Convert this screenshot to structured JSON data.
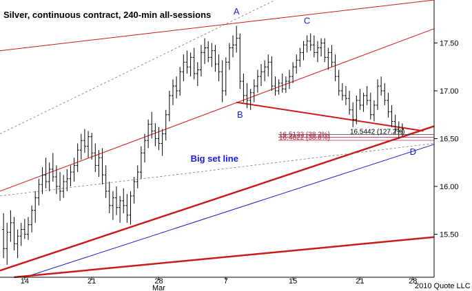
{
  "chart_data": {
    "type": "ohlc",
    "title": "Silver, continuous contract, 240-min all-sessions",
    "copyright": "2010 Quote LLC",
    "ylim": [
      15.05,
      17.95
    ],
    "y_ticks": [
      {
        "value": 15.5,
        "label": "15.50"
      },
      {
        "value": 16.0,
        "label": "16.00"
      },
      {
        "value": 16.5,
        "label": "16.50"
      },
      {
        "value": 17.0,
        "label": "17.00"
      },
      {
        "value": 17.5,
        "label": "17.50"
      }
    ],
    "x_ticks": [
      {
        "bar": 6,
        "label": "14"
      },
      {
        "bar": 25,
        "label": "21"
      },
      {
        "bar": 44,
        "label": "28"
      },
      {
        "bar": 63,
        "label": "7"
      },
      {
        "bar": 82,
        "label": "15"
      },
      {
        "bar": 101,
        "label": "21"
      },
      {
        "bar": 116,
        "label": "28"
      }
    ],
    "month_label": {
      "bar": 44,
      "label": "Mar"
    },
    "x_range": [
      -1,
      122
    ],
    "bars": [
      [
        15.55,
        15.72,
        15.25,
        15.35
      ],
      [
        15.35,
        15.62,
        15.18,
        15.52
      ],
      [
        15.52,
        15.75,
        15.42,
        15.62
      ],
      [
        15.62,
        15.68,
        15.33,
        15.4
      ],
      [
        15.4,
        15.55,
        15.25,
        15.48
      ],
      [
        15.48,
        15.62,
        15.38,
        15.55
      ],
      [
        15.55,
        15.66,
        15.45,
        15.5
      ],
      [
        15.5,
        15.68,
        15.44,
        15.6
      ],
      [
        15.6,
        15.8,
        15.52,
        15.75
      ],
      [
        15.75,
        15.95,
        15.62,
        15.88
      ],
      [
        15.88,
        16.08,
        15.8,
        16.02
      ],
      [
        16.02,
        16.2,
        15.92,
        16.12
      ],
      [
        16.12,
        16.3,
        15.98,
        16.05
      ],
      [
        16.05,
        16.25,
        15.95,
        16.18
      ],
      [
        16.18,
        16.35,
        16.05,
        16.1
      ],
      [
        16.1,
        16.22,
        15.92,
        16.0
      ],
      [
        16.0,
        16.15,
        15.85,
        15.95
      ],
      [
        15.95,
        16.12,
        15.88,
        16.05
      ],
      [
        16.05,
        16.18,
        15.95,
        16.08
      ],
      [
        16.08,
        16.22,
        16.0,
        16.15
      ],
      [
        16.15,
        16.3,
        16.05,
        16.22
      ],
      [
        16.22,
        16.45,
        16.15,
        16.38
      ],
      [
        16.38,
        16.55,
        16.28,
        16.48
      ],
      [
        16.48,
        16.6,
        16.35,
        16.42
      ],
      [
        16.42,
        16.58,
        16.3,
        16.52
      ],
      [
        16.52,
        16.56,
        16.28,
        16.35
      ],
      [
        16.35,
        16.45,
        16.15,
        16.22
      ],
      [
        16.22,
        16.38,
        16.1,
        16.3
      ],
      [
        16.3,
        16.4,
        16.02,
        16.12
      ],
      [
        16.12,
        16.22,
        15.88,
        15.95
      ],
      [
        15.95,
        16.05,
        15.72,
        15.8
      ],
      [
        15.8,
        15.95,
        15.65,
        15.88
      ],
      [
        15.88,
        16.0,
        15.7,
        15.78
      ],
      [
        15.78,
        15.9,
        15.62,
        15.85
      ],
      [
        15.85,
        15.98,
        15.72,
        15.8
      ],
      [
        15.8,
        15.92,
        15.62,
        15.7
      ],
      [
        15.7,
        15.95,
        15.6,
        15.9
      ],
      [
        15.9,
        16.1,
        15.82,
        16.05
      ],
      [
        16.05,
        16.22,
        15.98,
        16.15
      ],
      [
        16.15,
        16.42,
        16.08,
        16.35
      ],
      [
        16.35,
        16.55,
        16.25,
        16.48
      ],
      [
        16.48,
        16.7,
        16.4,
        16.65
      ],
      [
        16.65,
        16.78,
        16.5,
        16.58
      ],
      [
        16.58,
        16.66,
        16.42,
        16.5
      ],
      [
        16.5,
        16.62,
        16.38,
        16.45
      ],
      [
        16.45,
        16.6,
        16.32,
        16.55
      ],
      [
        16.55,
        16.8,
        16.48,
        16.75
      ],
      [
        16.75,
        17.0,
        16.68,
        16.95
      ],
      [
        16.95,
        17.12,
        16.85,
        17.05
      ],
      [
        17.05,
        17.15,
        16.92,
        17.0
      ],
      [
        17.0,
        17.25,
        16.95,
        17.2
      ],
      [
        17.2,
        17.38,
        17.1,
        17.3
      ],
      [
        17.3,
        17.42,
        17.18,
        17.25
      ],
      [
        17.25,
        17.4,
        17.15,
        17.35
      ],
      [
        17.35,
        17.45,
        17.12,
        17.18
      ],
      [
        17.18,
        17.3,
        17.05,
        17.22
      ],
      [
        17.22,
        17.48,
        17.15,
        17.4
      ],
      [
        17.4,
        17.55,
        17.28,
        17.45
      ],
      [
        17.45,
        17.52,
        17.3,
        17.35
      ],
      [
        17.35,
        17.5,
        17.25,
        17.42
      ],
      [
        17.42,
        17.48,
        17.2,
        17.28
      ],
      [
        17.28,
        17.38,
        17.1,
        17.2
      ],
      [
        17.2,
        17.32,
        16.88,
        17.0
      ],
      [
        17.0,
        17.35,
        16.95,
        17.3
      ],
      [
        17.3,
        17.5,
        17.22,
        17.45
      ],
      [
        17.45,
        17.58,
        17.35,
        17.48
      ],
      [
        17.48,
        17.68,
        17.4,
        17.55
      ],
      [
        17.55,
        17.6,
        17.02,
        17.1
      ],
      [
        17.1,
        17.18,
        16.88,
        16.95
      ],
      [
        16.95,
        17.08,
        16.82,
        16.9
      ],
      [
        16.9,
        17.02,
        16.8,
        16.98
      ],
      [
        16.98,
        17.12,
        16.88,
        17.05
      ],
      [
        17.05,
        17.22,
        16.98,
        17.15
      ],
      [
        17.15,
        17.28,
        17.05,
        17.2
      ],
      [
        17.2,
        17.32,
        17.1,
        17.25
      ],
      [
        17.25,
        17.38,
        17.15,
        17.3
      ],
      [
        17.3,
        17.36,
        17.0,
        17.05
      ],
      [
        17.05,
        17.15,
        16.95,
        17.0
      ],
      [
        17.0,
        17.12,
        16.96,
        17.08
      ],
      [
        17.08,
        17.18,
        16.98,
        17.02
      ],
      [
        17.02,
        17.15,
        16.98,
        17.1
      ],
      [
        17.1,
        17.22,
        17.02,
        17.15
      ],
      [
        17.15,
        17.3,
        17.08,
        17.25
      ],
      [
        17.25,
        17.38,
        17.18,
        17.32
      ],
      [
        17.32,
        17.45,
        17.25,
        17.4
      ],
      [
        17.4,
        17.52,
        17.32,
        17.48
      ],
      [
        17.48,
        17.58,
        17.4,
        17.52
      ],
      [
        17.52,
        17.6,
        17.42,
        17.48
      ],
      [
        17.48,
        17.58,
        17.35,
        17.4
      ],
      [
        17.4,
        17.52,
        17.3,
        17.45
      ],
      [
        17.45,
        17.55,
        17.36,
        17.5
      ],
      [
        17.5,
        17.55,
        17.3,
        17.35
      ],
      [
        17.35,
        17.45,
        17.22,
        17.4
      ],
      [
        17.4,
        17.48,
        17.25,
        17.3
      ],
      [
        17.3,
        17.38,
        17.1,
        17.15
      ],
      [
        17.15,
        17.22,
        16.95,
        17.0
      ],
      [
        17.0,
        17.08,
        16.9,
        16.95
      ],
      [
        16.95,
        17.05,
        16.85,
        16.92
      ],
      [
        16.92,
        17.0,
        16.75,
        16.8
      ],
      [
        16.8,
        16.88,
        16.62,
        16.7
      ],
      [
        16.7,
        16.95,
        16.65,
        16.9
      ],
      [
        16.9,
        17.02,
        16.8,
        16.85
      ],
      [
        16.85,
        16.98,
        16.78,
        16.95
      ],
      [
        16.95,
        17.05,
        16.85,
        16.9
      ],
      [
        16.9,
        16.98,
        16.7,
        16.75
      ],
      [
        16.75,
        16.9,
        16.68,
        16.85
      ],
      [
        16.85,
        17.12,
        16.8,
        17.05
      ],
      [
        17.05,
        17.15,
        16.95,
        17.0
      ],
      [
        17.0,
        17.08,
        16.85,
        16.9
      ],
      [
        16.9,
        16.98,
        16.72,
        16.78
      ],
      [
        16.78,
        16.85,
        16.62,
        16.68
      ],
      [
        16.68,
        16.75,
        16.55,
        16.6
      ],
      [
        16.6,
        16.68,
        16.5,
        16.58
      ],
      [
        16.58,
        16.66,
        16.53,
        16.6
      ]
    ],
    "annotations": [
      {
        "label": "A",
        "bar": 66,
        "price": 17.8
      },
      {
        "label": "B",
        "bar": 67,
        "price": 16.72
      },
      {
        "label": "C",
        "bar": 86,
        "price": 17.7
      },
      {
        "label": "D",
        "bar": 116,
        "price": 16.33
      },
      {
        "label": "Big set line",
        "bar": 53,
        "price": 16.26
      }
    ],
    "fib_levels": [
      {
        "text": "16.5442 (127.2%)",
        "price": 16.5442
      },
      {
        "text": "16.5133 (38.2%)",
        "price": 16.5133
      },
      {
        "text": "16.4822 (38.8%)",
        "price": 16.4822
      }
    ],
    "trendlines": [
      {
        "color": "#cc1a1a",
        "width": 1,
        "from": [
          -1,
          17.42
        ],
        "to": [
          122,
          17.95
        ],
        "style": "solid"
      },
      {
        "color": "#cc1a1a",
        "width": 1,
        "from": [
          -1,
          15.95
        ],
        "to": [
          122,
          17.65
        ],
        "style": "solid"
      },
      {
        "color": "#cc1a1a",
        "width": 2.5,
        "from": [
          -1,
          15.12
        ],
        "to": [
          122,
          16.63
        ],
        "style": "solid"
      },
      {
        "color": "#1a1acc",
        "width": 1,
        "from": [
          6,
          15.05
        ],
        "to": [
          122,
          16.44
        ],
        "style": "solid"
      },
      {
        "color": "#cc1a1a",
        "width": 2.5,
        "from": [
          3,
          15.05
        ],
        "to": [
          122,
          15.47
        ],
        "style": "solid"
      },
      {
        "color": "#cc1a1a",
        "width": 2,
        "from": [
          66,
          16.88
        ],
        "to": [
          119,
          16.58
        ],
        "style": "solid"
      },
      {
        "color": "#777777",
        "width": 0.8,
        "from": [
          -1,
          16.55
        ],
        "to": [
          77,
          17.95
        ],
        "style": "dashed"
      },
      {
        "color": "#777777",
        "width": 0.8,
        "from": [
          -1,
          15.9
        ],
        "to": [
          122,
          16.45
        ],
        "style": "dashed"
      }
    ]
  }
}
